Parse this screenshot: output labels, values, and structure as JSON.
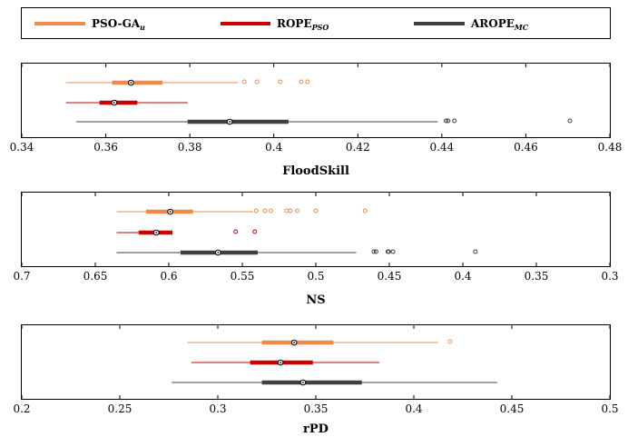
{
  "legend": {
    "items": [
      {
        "base": "PSO-GA",
        "sub": "u",
        "color": "#f08a4b"
      },
      {
        "base": "ROPE",
        "sub": "PSO",
        "color": "#cc0000"
      },
      {
        "base": "AROPE",
        "sub": "MC",
        "color": "#404040"
      }
    ]
  },
  "chart_data": [
    {
      "type": "boxplot",
      "xlabel": "FloodSkill",
      "xlim": [
        0.34,
        0.48
      ],
      "x_reversed": false,
      "ticks": [
        0.34,
        0.36,
        0.38,
        0.4,
        0.42,
        0.44,
        0.46,
        0.48
      ],
      "tick_labels": [
        "0.34",
        "0.36",
        "0.38",
        "0.4",
        "0.42",
        "0.44",
        "0.46",
        "0.48"
      ],
      "series": [
        {
          "name": "PSO-GA_u",
          "color": "#f08a4b",
          "whisker_low": 0.3505,
          "q1": 0.3615,
          "median": 0.366,
          "q3": 0.3735,
          "whisker_high": 0.3915,
          "outliers": [
            0.393,
            0.396,
            0.4015,
            0.4065,
            0.408
          ]
        },
        {
          "name": "ROPE_PSO",
          "color": "#cc0000",
          "whisker_low": 0.3505,
          "q1": 0.3585,
          "median": 0.362,
          "q3": 0.3675,
          "whisker_high": 0.3795,
          "outliers": []
        },
        {
          "name": "AROPE_MC",
          "color": "#404040",
          "whisker_low": 0.353,
          "q1": 0.3795,
          "median": 0.3895,
          "q3": 0.4035,
          "whisker_high": 0.439,
          "outliers": [
            0.441,
            0.4415,
            0.443,
            0.4705
          ]
        }
      ]
    },
    {
      "type": "boxplot",
      "xlabel": "NS",
      "xlim": [
        0.3,
        0.7
      ],
      "x_reversed": true,
      "ticks": [
        0.7,
        0.65,
        0.6,
        0.55,
        0.5,
        0.45,
        0.4,
        0.35,
        0.3
      ],
      "tick_labels": [
        "0.7",
        "0.65",
        "0.6",
        "0.55",
        "0.5",
        "0.45",
        "0.4",
        "0.35",
        "0.3"
      ],
      "series": [
        {
          "name": "PSO-GA_u",
          "color": "#f08a4b",
          "whisker_low": 0.5425,
          "q1": 0.5835,
          "median": 0.599,
          "q3": 0.6155,
          "whisker_high": 0.6355,
          "outliers": [
            0.5405,
            0.5345,
            0.5305,
            0.52,
            0.5175,
            0.5125,
            0.5,
            0.4665
          ]
        },
        {
          "name": "ROPE_PSO",
          "color": "#cc0000",
          "whisker_low": 0.5975,
          "q1": 0.5975,
          "median": 0.6085,
          "q3": 0.6205,
          "whisker_high": 0.6355,
          "outliers": [
            0.5545,
            0.5415
          ]
        },
        {
          "name": "AROPE_MC",
          "color": "#404040",
          "whisker_low": 0.4725,
          "q1": 0.5395,
          "median": 0.5665,
          "q3": 0.592,
          "whisker_high": 0.6355,
          "outliers": [
            0.4605,
            0.459,
            0.451,
            0.4505,
            0.4475,
            0.3915
          ]
        }
      ]
    },
    {
      "type": "boxplot",
      "xlabel": "rPD",
      "xlim": [
        0.2,
        0.5
      ],
      "x_reversed": false,
      "ticks": [
        0.2,
        0.25,
        0.3,
        0.35,
        0.4,
        0.45,
        0.5
      ],
      "tick_labels": [
        "0.2",
        "0.25",
        "0.3",
        "0.35",
        "0.4",
        "0.45",
        "0.5"
      ],
      "series": [
        {
          "name": "PSO-GA_u",
          "color": "#f08a4b",
          "whisker_low": 0.2845,
          "q1": 0.3225,
          "median": 0.339,
          "q3": 0.359,
          "whisker_high": 0.4125,
          "outliers": [
            0.4185
          ]
        },
        {
          "name": "ROPE_PSO",
          "color": "#cc0000",
          "whisker_low": 0.2865,
          "q1": 0.3165,
          "median": 0.332,
          "q3": 0.3485,
          "whisker_high": 0.3825,
          "outliers": []
        },
        {
          "name": "AROPE_MC",
          "color": "#404040",
          "whisker_low": 0.2765,
          "q1": 0.3225,
          "median": 0.3435,
          "q3": 0.3735,
          "whisker_high": 0.4425,
          "outliers": []
        }
      ]
    }
  ]
}
